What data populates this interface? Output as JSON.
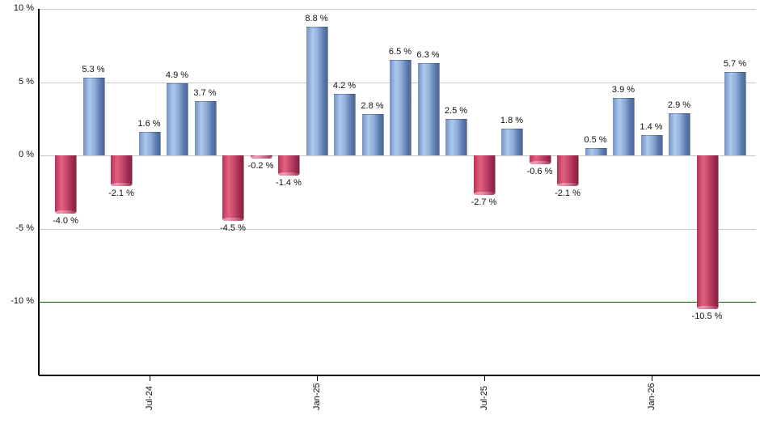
{
  "chart_data": {
    "type": "bar",
    "description": "Monthly percentage returns bar chart, positive months blue, negative months crimson",
    "values": [
      -4.0,
      5.3,
      -2.1,
      1.6,
      4.9,
      3.7,
      -4.5,
      -0.2,
      -1.4,
      8.8,
      4.2,
      2.8,
      6.5,
      6.3,
      2.5,
      -2.7,
      1.8,
      -0.6,
      -2.1,
      0.5,
      3.9,
      1.4,
      2.9,
      -10.5,
      5.7
    ],
    "bar_labels": [
      "-4.0 %",
      "5.3 %",
      "-2.1 %",
      "1.6 %",
      "4.9 %",
      "3.7 %",
      "-4.5 %",
      "-0.2 %",
      "-1.4 %",
      "8.8 %",
      "4.2 %",
      "2.8 %",
      "6.5 %",
      "6.3 %",
      "2.5 %",
      "-2.7 %",
      "1.8 %",
      "-0.6 %",
      "-2.1 %",
      "0.5 %",
      "3.9 %",
      "1.4 %",
      "2.9 %",
      "-10.5 %",
      "5.7 %"
    ],
    "x_ticks": [
      {
        "label": "Jul-24",
        "bar_index": 3
      },
      {
        "label": "Jan-25",
        "bar_index": 9
      },
      {
        "label": "Jul-25",
        "bar_index": 15
      },
      {
        "label": "Jan-26",
        "bar_index": 21
      }
    ],
    "y_ticks": [
      {
        "label": "10 %",
        "value": 10
      },
      {
        "label": "5 %",
        "value": 5
      },
      {
        "label": "0 %",
        "value": 0
      },
      {
        "label": "-5 %",
        "value": -5
      },
      {
        "label": "-10 %",
        "value": -10
      }
    ],
    "ylim": [
      -15,
      10
    ],
    "grid": true,
    "legend": null,
    "title": "",
    "xlabel": "",
    "ylabel": "",
    "benchmark_line": {
      "value": -10,
      "color": "#006d00"
    },
    "positive_color": "#7e9ed2",
    "negative_color": "#c23a5e",
    "gridline_color": "#c9c9c9",
    "axis_color": "#000000",
    "label_color": "#111111"
  }
}
